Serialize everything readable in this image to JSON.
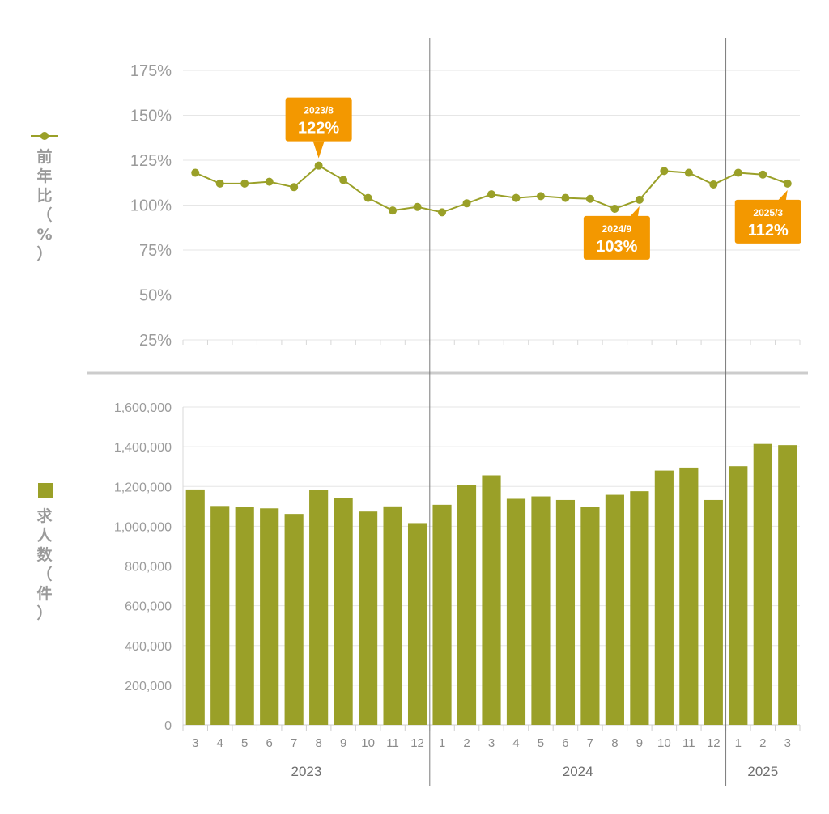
{
  "colors": {
    "series": "#9aa028",
    "callout": "#f39800",
    "grid": "#e6e6e6",
    "divider": "#cccccc",
    "year_line": "#7a7a7a"
  },
  "chart_data": [
    {
      "type": "line",
      "ylabel": "前年比（%）",
      "legend_icon": "line-with-dot",
      "legend_placement": "left",
      "ylim": [
        25,
        175
      ],
      "yticks": [
        "25%",
        "50%",
        "75%",
        "100%",
        "125%",
        "150%",
        "175%"
      ],
      "ytick_values": [
        25,
        50,
        75,
        100,
        125,
        150,
        175
      ],
      "grid": true,
      "x": [
        "2023/3",
        "2023/4",
        "2023/5",
        "2023/6",
        "2023/7",
        "2023/8",
        "2023/9",
        "2023/10",
        "2023/11",
        "2023/12",
        "2024/1",
        "2024/2",
        "2024/3",
        "2024/4",
        "2024/5",
        "2024/6",
        "2024/7",
        "2024/8",
        "2024/9",
        "2024/10",
        "2024/11",
        "2024/12",
        "2025/1",
        "2025/2",
        "2025/3"
      ],
      "series": [
        {
          "values": [
            118,
            112,
            112,
            113,
            110,
            122,
            114,
            104,
            97,
            99,
            96,
            101,
            106,
            104,
            105,
            104,
            103.5,
            98,
            103,
            119,
            118,
            111.5,
            118,
            117,
            112
          ]
        }
      ],
      "annotations": [
        {
          "index": 5,
          "label": "2023/8",
          "value_text": "122%",
          "position": "above"
        },
        {
          "index": 18,
          "label": "2024/9",
          "value_text": "103%",
          "position": "below"
        },
        {
          "index": 24,
          "label": "2025/3",
          "value_text": "112%",
          "position": "below"
        }
      ]
    },
    {
      "type": "bar",
      "ylabel": "求人数（件）",
      "legend_icon": "square",
      "legend_placement": "left",
      "ylim": [
        0,
        1600000
      ],
      "yticks": [
        "0",
        "200,000",
        "400,000",
        "600,000",
        "800,000",
        "1,000,000",
        "1,200,000",
        "1,400,000",
        "1,600,000"
      ],
      "ytick_values": [
        0,
        200000,
        400000,
        600000,
        800000,
        1000000,
        1200000,
        1400000,
        1600000
      ],
      "grid": true,
      "categories": [
        "3",
        "4",
        "5",
        "6",
        "7",
        "8",
        "9",
        "10",
        "11",
        "12",
        "1",
        "2",
        "3",
        "4",
        "5",
        "6",
        "7",
        "8",
        "9",
        "10",
        "11",
        "12",
        "1",
        "2",
        "3"
      ],
      "years": [
        {
          "label": "2023",
          "start": 0,
          "end": 9
        },
        {
          "label": "2024",
          "start": 10,
          "end": 21
        },
        {
          "label": "2025",
          "start": 22,
          "end": 24
        }
      ],
      "series": [
        {
          "values": [
            1185000,
            1102000,
            1096000,
            1090000,
            1062000,
            1184000,
            1140000,
            1074000,
            1100000,
            1016000,
            1108000,
            1206000,
            1256000,
            1138000,
            1150000,
            1132000,
            1097000,
            1158000,
            1176000,
            1280000,
            1295000,
            1132000,
            1302000,
            1414000,
            1408000
          ]
        }
      ]
    }
  ]
}
